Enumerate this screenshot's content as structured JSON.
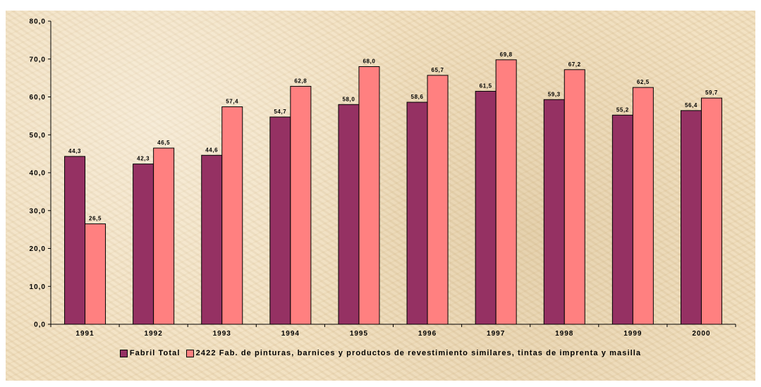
{
  "chart_data": {
    "type": "bar",
    "categories": [
      "1991",
      "1992",
      "1993",
      "1994",
      "1995",
      "1996",
      "1997",
      "1998",
      "1999",
      "2000"
    ],
    "series": [
      {
        "name": "Fabril Total",
        "color": "#953163",
        "values": [
          44.3,
          42.3,
          44.6,
          54.7,
          58.0,
          58.6,
          61.5,
          59.3,
          55.2,
          56.4
        ],
        "labels": [
          "44,3",
          "42,3",
          "44,6",
          "54,7",
          "58,0",
          "58,6",
          "61,5",
          "59,3",
          "55,2",
          "56,4"
        ]
      },
      {
        "name": "2422 Fab. de pinturas, barnices y productos de revestimiento similares, tintas de imprenta y masilla",
        "color": "#ff8080",
        "values": [
          26.5,
          46.5,
          57.4,
          62.8,
          68.0,
          65.7,
          69.8,
          67.2,
          62.5,
          59.7
        ],
        "labels": [
          "26,5",
          "46,5",
          "57,4",
          "62,8",
          "68,0",
          "65,7",
          "69,8",
          "67,2",
          "62,5",
          "59,7"
        ]
      }
    ],
    "ylim": [
      0,
      80
    ],
    "yticks": [
      "0,0",
      "10,0",
      "20,0",
      "30,0",
      "40,0",
      "50,0",
      "60,0",
      "70,0",
      "80,0"
    ],
    "legend_position": "bottom",
    "grid": false,
    "background": "#efdcba"
  }
}
